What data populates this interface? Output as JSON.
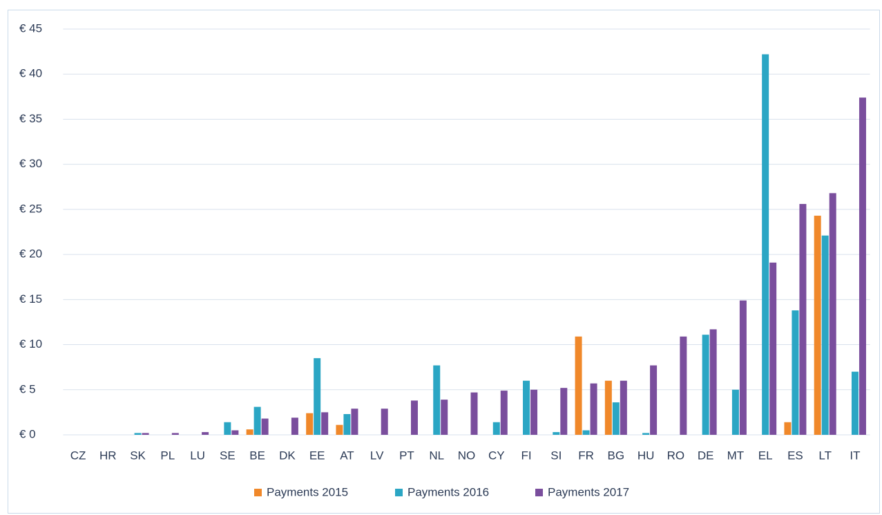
{
  "chart_data": {
    "type": "bar",
    "categories": [
      "CZ",
      "HR",
      "SK",
      "PL",
      "LU",
      "SE",
      "BE",
      "DK",
      "EE",
      "AT",
      "LV",
      "PT",
      "NL",
      "NO",
      "CY",
      "FI",
      "SI",
      "FR",
      "BG",
      "HU",
      "RO",
      "DE",
      "MT",
      "EL",
      "ES",
      "LT",
      "IT"
    ],
    "series": [
      {
        "name": "Payments 2015",
        "color": "#f0882a",
        "values": [
          0,
          0,
          0,
          0,
          0,
          0,
          0.6,
          0,
          2.4,
          1.1,
          0,
          0,
          0,
          0,
          0,
          0,
          0,
          10.9,
          6.0,
          0,
          0,
          0,
          0,
          0,
          1.4,
          24.3,
          0
        ]
      },
      {
        "name": "Payments 2016",
        "color": "#2ba6c4",
        "values": [
          0,
          0,
          0.2,
          0,
          0,
          1.4,
          3.1,
          0,
          8.5,
          2.3,
          0,
          0,
          7.7,
          0,
          1.4,
          6.0,
          0.3,
          0.5,
          3.6,
          0.2,
          0,
          11.1,
          5.0,
          42.2,
          13.8,
          22.1,
          7.0
        ]
      },
      {
        "name": "Payments 2017",
        "color": "#7a4e9d",
        "values": [
          0,
          0,
          0.2,
          0.2,
          0.3,
          0.5,
          1.8,
          1.9,
          2.5,
          2.9,
          2.9,
          3.8,
          3.9,
          4.7,
          4.9,
          5.0,
          5.2,
          5.7,
          6.0,
          7.7,
          10.9,
          11.7,
          14.9,
          19.1,
          25.6,
          26.8,
          37.4
        ]
      }
    ],
    "ylim": [
      0,
      45
    ],
    "yticks": [
      {
        "value": 0,
        "label": "€ 0"
      },
      {
        "value": 5,
        "label": "€ 5"
      },
      {
        "value": 10,
        "label": "€ 10"
      },
      {
        "value": 15,
        "label": "€ 15"
      },
      {
        "value": 20,
        "label": "€ 20"
      },
      {
        "value": 25,
        "label": "€ 25"
      },
      {
        "value": 30,
        "label": "€ 30"
      },
      {
        "value": 35,
        "label": "€ 35"
      },
      {
        "value": 40,
        "label": "€ 40"
      },
      {
        "value": 45,
        "label": "€ 45"
      }
    ],
    "grid": true,
    "legend": "bottom"
  }
}
